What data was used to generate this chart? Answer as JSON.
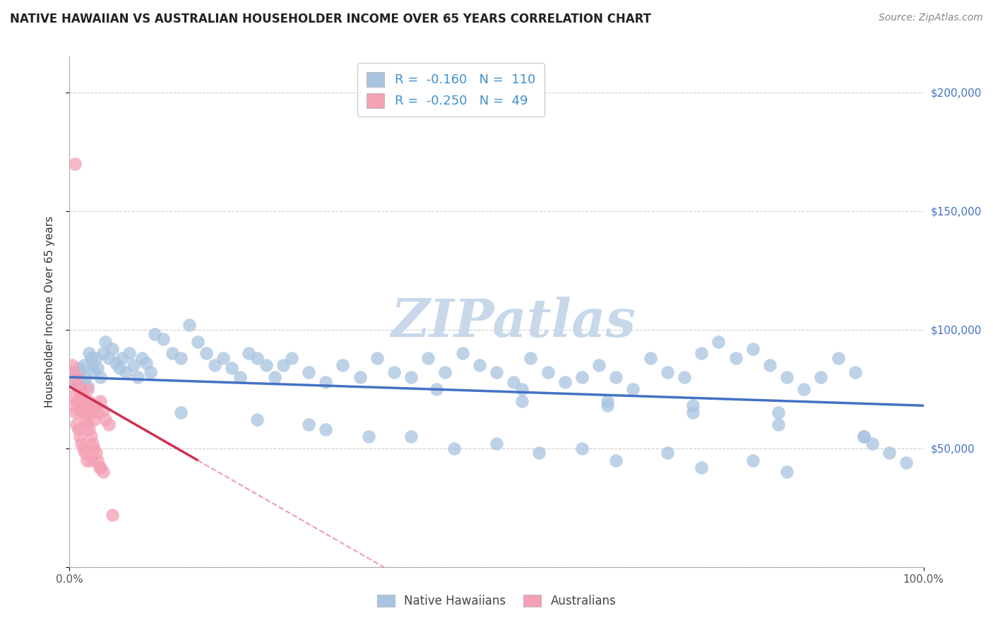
{
  "title": "NATIVE HAWAIIAN VS AUSTRALIAN HOUSEHOLDER INCOME OVER 65 YEARS CORRELATION CHART",
  "source": "Source: ZipAtlas.com",
  "ylabel": "Householder Income Over 65 years",
  "xlim": [
    0,
    1.0
  ],
  "ylim": [
    0,
    215000
  ],
  "xticks": [
    0.0,
    1.0
  ],
  "xticklabels": [
    "0.0%",
    "100.0%"
  ],
  "ytick_vals": [
    0,
    50000,
    100000,
    150000,
    200000
  ],
  "ytick_labels_right": [
    "",
    "$50,000",
    "$100,000",
    "$150,000",
    "$200,000"
  ],
  "r_hawaiian": -0.16,
  "n_hawaiian": 110,
  "r_australian": -0.25,
  "n_australian": 49,
  "hawaiian_color": "#a8c4e0",
  "australian_color": "#f4a0b5",
  "trend_hawaiian_color": "#4472c4",
  "trend_australian_color": "#d03050",
  "trend_australian_dash_color": "#e8a0b0",
  "watermark": "ZIPatlas",
  "watermark_color": "#c8d8ea",
  "background_color": "#ffffff",
  "grid_color": "#cccccc",
  "legend_r_color": "#4090d0",
  "legend_n_color": "#4090d0",
  "hawaiian_x": [
    0.003,
    0.005,
    0.007,
    0.009,
    0.011,
    0.013,
    0.015,
    0.017,
    0.019,
    0.021,
    0.023,
    0.025,
    0.027,
    0.029,
    0.031,
    0.033,
    0.036,
    0.039,
    0.042,
    0.046,
    0.05,
    0.054,
    0.058,
    0.062,
    0.066,
    0.07,
    0.075,
    0.08,
    0.085,
    0.09,
    0.095,
    0.1,
    0.11,
    0.12,
    0.13,
    0.14,
    0.15,
    0.16,
    0.17,
    0.18,
    0.19,
    0.2,
    0.21,
    0.22,
    0.23,
    0.24,
    0.25,
    0.26,
    0.28,
    0.3,
    0.32,
    0.34,
    0.36,
    0.38,
    0.4,
    0.42,
    0.44,
    0.46,
    0.48,
    0.5,
    0.52,
    0.54,
    0.56,
    0.58,
    0.6,
    0.62,
    0.64,
    0.66,
    0.68,
    0.7,
    0.72,
    0.74,
    0.76,
    0.78,
    0.8,
    0.82,
    0.84,
    0.86,
    0.88,
    0.9,
    0.92,
    0.94,
    0.96,
    0.98,
    0.13,
    0.22,
    0.3,
    0.4,
    0.5,
    0.6,
    0.7,
    0.8,
    0.53,
    0.63,
    0.73,
    0.83,
    0.28,
    0.35,
    0.45,
    0.55,
    0.64,
    0.74,
    0.84,
    0.93,
    0.43,
    0.53,
    0.63,
    0.73,
    0.83,
    0.93
  ],
  "hawaiian_y": [
    82000,
    78000,
    80000,
    76000,
    84000,
    82000,
    78000,
    85000,
    80000,
    76000,
    90000,
    88000,
    85000,
    82000,
    88000,
    84000,
    80000,
    90000,
    95000,
    88000,
    92000,
    86000,
    84000,
    88000,
    82000,
    90000,
    85000,
    80000,
    88000,
    86000,
    82000,
    98000,
    96000,
    90000,
    88000,
    102000,
    95000,
    90000,
    85000,
    88000,
    84000,
    80000,
    90000,
    88000,
    85000,
    80000,
    85000,
    88000,
    82000,
    78000,
    85000,
    80000,
    88000,
    82000,
    80000,
    88000,
    82000,
    90000,
    85000,
    82000,
    78000,
    88000,
    82000,
    78000,
    80000,
    85000,
    80000,
    75000,
    88000,
    82000,
    80000,
    90000,
    95000,
    88000,
    92000,
    85000,
    80000,
    75000,
    80000,
    88000,
    82000,
    52000,
    48000,
    44000,
    65000,
    62000,
    58000,
    55000,
    52000,
    50000,
    48000,
    45000,
    75000,
    70000,
    68000,
    65000,
    60000,
    55000,
    50000,
    48000,
    45000,
    42000,
    40000,
    55000,
    75000,
    70000,
    68000,
    65000,
    60000,
    55000
  ],
  "australian_x": [
    0.003,
    0.005,
    0.007,
    0.009,
    0.011,
    0.013,
    0.015,
    0.017,
    0.019,
    0.021,
    0.023,
    0.025,
    0.027,
    0.029,
    0.031,
    0.033,
    0.036,
    0.039,
    0.042,
    0.046,
    0.003,
    0.005,
    0.007,
    0.009,
    0.011,
    0.013,
    0.015,
    0.017,
    0.019,
    0.021,
    0.023,
    0.025,
    0.027,
    0.029,
    0.031,
    0.033,
    0.036,
    0.039,
    0.006,
    0.008,
    0.01,
    0.012,
    0.014,
    0.016,
    0.018,
    0.02,
    0.025,
    0.035,
    0.05
  ],
  "australian_y": [
    72000,
    68000,
    65000,
    70000,
    66000,
    75000,
    72000,
    68000,
    65000,
    75000,
    70000,
    68000,
    65000,
    62000,
    68000,
    65000,
    70000,
    66000,
    62000,
    60000,
    85000,
    82000,
    78000,
    80000,
    75000,
    72000,
    68000,
    65000,
    62000,
    60000,
    58000,
    55000,
    52000,
    50000,
    48000,
    45000,
    42000,
    40000,
    170000,
    60000,
    58000,
    55000,
    52000,
    50000,
    48000,
    45000,
    45000,
    42000,
    22000
  ]
}
